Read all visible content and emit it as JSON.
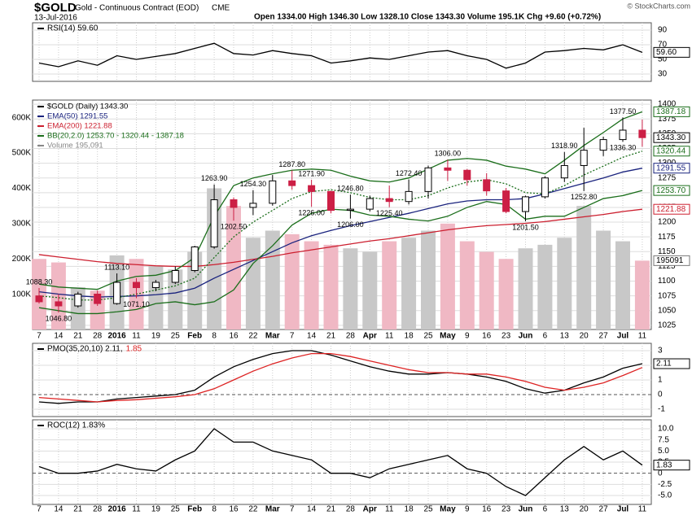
{
  "header": {
    "symbol": "$GOLD",
    "name": "Gold - Continuous Contract (EOD)",
    "exchange": "CME",
    "date": "13-Jul-2016",
    "quote": "Open 1334.00  High 1346.30  Low 1328.10  Close 1343.30  Volume 195.1K  Chg +9.60 (+0.72%)",
    "credit": "© StockCharts.com"
  },
  "chart_data": [
    {
      "type": "line",
      "legend": "RSI(14) 59.60",
      "ylim": [
        20,
        100
      ],
      "yticks": [
        30,
        50,
        70,
        90
      ],
      "grid": true,
      "series": [
        {
          "name": "RSI(14)",
          "color": "#000000",
          "values": [
            45,
            40,
            48,
            42,
            55,
            50,
            54,
            58,
            65,
            72,
            58,
            56,
            62,
            58,
            55,
            45,
            48,
            52,
            50,
            55,
            60,
            62,
            55,
            50,
            38,
            45,
            60,
            62,
            65,
            63,
            70,
            59.6
          ]
        }
      ],
      "markers": [
        {
          "value": 59.6,
          "label": "59.60",
          "color": "#000000"
        }
      ]
    },
    {
      "type": "candlestick",
      "categories": [
        "7",
        "14",
        "21",
        "28",
        "2016",
        "11",
        "19",
        "25",
        "Feb",
        "8",
        "16",
        "22",
        "Mar",
        "7",
        "14",
        "21",
        "28",
        "Apr",
        "11",
        "18",
        "25",
        "May",
        "9",
        "16",
        "23",
        "Jun",
        "6",
        "13",
        "20",
        "27",
        "Jul",
        "11"
      ],
      "open": [
        1075,
        1065,
        1058,
        1078,
        1062,
        1098,
        1089,
        1098,
        1118,
        1158,
        1238,
        1225,
        1232,
        1270,
        1262,
        1252,
        1220,
        1222,
        1240,
        1235,
        1252,
        1292,
        1288,
        1272,
        1253,
        1218,
        1243,
        1275,
        1296,
        1322,
        1340,
        1356
      ],
      "high": [
        1088.3,
        1078,
        1082,
        1084,
        1113.1,
        1105,
        1102,
        1125,
        1160,
        1263.9,
        1242,
        1254.3,
        1280,
        1287.8,
        1271.9,
        1253,
        1246.8,
        1245,
        1262,
        1272.4,
        1296,
        1306,
        1290,
        1283,
        1258,
        1245,
        1278,
        1318.9,
        1360,
        1345,
        1377.5,
        1374
      ],
      "low": [
        1062,
        1046.8,
        1055,
        1058,
        1060,
        1071.1,
        1083,
        1095,
        1115,
        1155,
        1202.5,
        1212,
        1228,
        1255,
        1226,
        1215,
        1206,
        1218,
        1225.4,
        1230,
        1240,
        1270,
        1262,
        1245,
        1215,
        1201.5,
        1240,
        1268,
        1252.8,
        1312,
        1336.3,
        1328
      ],
      "close": [
        1065,
        1058,
        1078,
        1062,
        1098,
        1089,
        1098,
        1118,
        1158,
        1238,
        1225,
        1232,
        1270,
        1262,
        1252,
        1220,
        1222,
        1240,
        1235,
        1252,
        1292,
        1288,
        1272,
        1253,
        1218,
        1243,
        1275,
        1296,
        1322,
        1340,
        1356,
        1343.3
      ],
      "up_color": "#000000",
      "down_color": "#cc1f45",
      "ylim": [
        1018,
        1407
      ],
      "yticks": [
        1025,
        1050,
        1075,
        1100,
        1125,
        1150,
        1175,
        1200,
        1225,
        1250,
        1275,
        1300,
        1325,
        1350,
        1375,
        1400
      ],
      "grid": true,
      "legend": "$GOLD (Daily) 1343.30",
      "series": [
        {
          "name": "EMA(50) 1291.55",
          "color": "#1a237e",
          "values": [
            1082,
            1078,
            1075,
            1073,
            1074,
            1075,
            1077,
            1080,
            1088,
            1105,
            1120,
            1135,
            1150,
            1165,
            1177,
            1186,
            1194,
            1201,
            1208,
            1215,
            1223,
            1231,
            1236,
            1238,
            1238,
            1240,
            1248,
            1257,
            1266,
            1275,
            1285,
            1291.55
          ]
        },
        {
          "name": "EMA(200) 1221.88",
          "color": "#cc1f2f",
          "values": [
            1145,
            1141,
            1137,
            1133,
            1130,
            1128,
            1126,
            1125,
            1125,
            1128,
            1132,
            1137,
            1142,
            1148,
            1153,
            1158,
            1163,
            1168,
            1172,
            1177,
            1182,
            1187,
            1191,
            1194,
            1196,
            1198,
            1201,
            1205,
            1209,
            1213,
            1218,
            1221.88
          ]
        },
        {
          "name": "BB(20,2.0) 1253.70 - 1320.44 - 1387.18",
          "color": "#1b6e1b",
          "values": [
            1095,
            1090,
            1088,
            1086,
            1100,
            1108,
            1110,
            1118,
            1140,
            1210,
            1262,
            1275,
            1282,
            1288,
            1290,
            1288,
            1278,
            1270,
            1268,
            1275,
            1290,
            1305,
            1308,
            1305,
            1295,
            1290,
            1282,
            1305,
            1330,
            1352,
            1375,
            1387.18
          ]
        },
        {
          "color": "#1b6e1b",
          "dashed": true,
          "values": [
            1075,
            1072,
            1068,
            1068,
            1072,
            1078,
            1085,
            1092,
            1105,
            1140,
            1175,
            1200,
            1220,
            1240,
            1252,
            1255,
            1250,
            1242,
            1238,
            1238,
            1245,
            1258,
            1268,
            1272,
            1265,
            1250,
            1248,
            1262,
            1280,
            1295,
            1310,
            1320.44
          ]
        },
        {
          "color": "#1b6e1b",
          "values": [
            1055,
            1050,
            1045,
            1045,
            1048,
            1052,
            1062,
            1065,
            1060,
            1065,
            1085,
            1130,
            1160,
            1195,
            1215,
            1222,
            1220,
            1212,
            1210,
            1205,
            1202,
            1210,
            1225,
            1235,
            1230,
            1205,
            1210,
            1210,
            1225,
            1240,
            1245,
            1253.7
          ]
        }
      ],
      "volume": {
        "name": "Volume 195,091",
        "values": [
          200000,
          190000,
          120000,
          110000,
          210000,
          200000,
          180000,
          170000,
          220000,
          400000,
          350000,
          260000,
          280000,
          270000,
          250000,
          240000,
          230000,
          220000,
          250000,
          260000,
          280000,
          300000,
          250000,
          220000,
          200000,
          230000,
          240000,
          260000,
          350000,
          280000,
          250000,
          195091
        ],
        "ylim": [
          0,
          650000
        ],
        "yticks": [
          {
            "value": 100000,
            "label": "100K"
          },
          {
            "value": 200000,
            "label": "200K"
          },
          {
            "value": 300000,
            "label": "300K"
          },
          {
            "value": 400000,
            "label": "400K"
          },
          {
            "value": 500000,
            "label": "500K"
          },
          {
            "value": 600000,
            "label": "600K"
          }
        ]
      },
      "annotations": [
        {
          "x": 0,
          "value": 1088.3,
          "label": "1088.30"
        },
        {
          "x": 1,
          "value": 1046.8,
          "label": "1046.80"
        },
        {
          "x": 4,
          "value": 1113.1,
          "label": "1113.10"
        },
        {
          "x": 5,
          "value": 1071.1,
          "label": "1071.10"
        },
        {
          "x": 9,
          "value": 1263.9,
          "label": "1263.90"
        },
        {
          "x": 10,
          "value": 1202.5,
          "label": "1202.50"
        },
        {
          "x": 11,
          "value": 1254.3,
          "label": "1254.30"
        },
        {
          "x": 13,
          "value": 1287.8,
          "label": "1287.80"
        },
        {
          "x": 14,
          "value": 1271.9,
          "label": "1271.90"
        },
        {
          "x": 14,
          "value": 1226,
          "label": "1226.00"
        },
        {
          "x": 16,
          "value": 1246.8,
          "label": "1246.80"
        },
        {
          "x": 16,
          "value": 1206,
          "label": "1206.00"
        },
        {
          "x": 18,
          "value": 1225.4,
          "label": "1225.40"
        },
        {
          "x": 19,
          "value": 1272.4,
          "label": "1272.40"
        },
        {
          "x": 21,
          "value": 1306,
          "label": "1306.00"
        },
        {
          "x": 25,
          "value": 1201.5,
          "label": "1201.50"
        },
        {
          "x": 27,
          "value": 1318.9,
          "label": "1318.90"
        },
        {
          "x": 28,
          "value": 1252.8,
          "label": "1252.80"
        },
        {
          "x": 30,
          "value": 1377.5,
          "label": "1377.50"
        },
        {
          "x": 30,
          "value": 1336.3,
          "label": "1336.30"
        }
      ],
      "markers": [
        {
          "value": 1387.18,
          "label": "1387.18",
          "color": "#1b6e1b"
        },
        {
          "value": 1343.3,
          "label": "1343.30",
          "color": "#000000"
        },
        {
          "value": 1320.44,
          "label": "1320.44",
          "color": "#1b6e1b"
        },
        {
          "value": 1291.55,
          "label": "1291.55",
          "color": "#1a237e"
        },
        {
          "value": 1253.7,
          "label": "1253.70",
          "color": "#1b6e1b"
        },
        {
          "value": 1221.88,
          "label": "1221.88",
          "color": "#cc1f2f"
        }
      ],
      "volume_marker": 195091
    },
    {
      "type": "line",
      "legend": "PMO(35,20,10) 2.11,",
      "legend2": "1.85",
      "ylim": [
        -1.5,
        3.5
      ],
      "yticks": [
        -1,
        0,
        1,
        2,
        3
      ],
      "grid": true,
      "series": [
        {
          "name": "PMO",
          "color": "#000000",
          "values": [
            -0.5,
            -0.6,
            -0.5,
            -0.5,
            -0.3,
            -0.2,
            -0.1,
            0,
            0.3,
            1.2,
            1.9,
            2.4,
            2.8,
            3,
            3,
            2.7,
            2.3,
            1.9,
            1.6,
            1.4,
            1.4,
            1.5,
            1.4,
            1.2,
            0.9,
            0.4,
            0.1,
            0.3,
            0.8,
            1.2,
            1.8,
            2.11
          ]
        },
        {
          "name": "Signal",
          "color": "#dd2222",
          "values": [
            -0.2,
            -0.3,
            -0.4,
            -0.5,
            -0.4,
            -0.35,
            -0.25,
            -0.15,
            0,
            0.4,
            1,
            1.6,
            2.1,
            2.5,
            2.8,
            2.8,
            2.6,
            2.3,
            2,
            1.7,
            1.5,
            1.5,
            1.4,
            1.4,
            1.2,
            0.9,
            0.5,
            0.3,
            0.5,
            0.8,
            1.3,
            1.85
          ]
        }
      ],
      "markers": [
        {
          "value": 2.11,
          "label": "2.11",
          "color": "#000000"
        }
      ]
    },
    {
      "type": "line",
      "legend": "ROC(12) 1.83%",
      "ylim": [
        -7,
        12
      ],
      "yticks": [
        {
          "value": -5,
          "label": "-5.0"
        },
        -2.5,
        0,
        2.5,
        {
          "value": 5,
          "label": "5.0"
        },
        7.5,
        {
          "value": 10,
          "label": "10.0"
        }
      ],
      "grid": true,
      "series": [
        {
          "name": "ROC(12)",
          "color": "#000000",
          "values": [
            1.5,
            0,
            0,
            0.5,
            2,
            1,
            0.5,
            3,
            5,
            10,
            7,
            7,
            5,
            4,
            3,
            0,
            0,
            -1,
            1,
            2,
            3,
            4,
            1,
            0,
            -3,
            -5,
            -1,
            3,
            6,
            3,
            5,
            1.83
          ]
        }
      ],
      "markers": [
        {
          "value": 1.83,
          "label": "1.83",
          "color": "#000000"
        }
      ]
    }
  ]
}
